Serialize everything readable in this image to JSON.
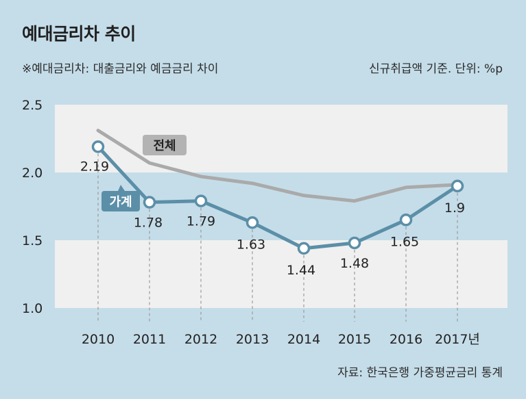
{
  "title": "예대금리차 추이",
  "note": "※예대금리차: 대출금리와 예금금리 차이",
  "basis": "신규취급액 기준. 단위: %p",
  "source": "자료: 한국은행 가중평균금리 통계",
  "chart_data": {
    "type": "line",
    "x": [
      "2010",
      "2011",
      "2012",
      "2013",
      "2014",
      "2015",
      "2016",
      "2017년"
    ],
    "ylim": [
      1.0,
      2.5
    ],
    "yticks": [
      "2.5",
      "2.0",
      "1.5",
      "1.0"
    ],
    "grid": "horizontal bands",
    "series": [
      {
        "name": "가계",
        "values": [
          2.19,
          1.78,
          1.79,
          1.63,
          1.44,
          1.48,
          1.65,
          1.9
        ],
        "labels": [
          "2.19",
          "1.78",
          "1.79",
          "1.63",
          "1.44",
          "1.48",
          "1.65",
          "1.9"
        ],
        "color": "#5b8fa8"
      },
      {
        "name": "전체",
        "values": [
          2.31,
          2.07,
          1.97,
          1.92,
          1.83,
          1.79,
          1.89,
          1.91
        ],
        "color": "#aaaaaa"
      }
    ]
  },
  "colors": {
    "background": "#c5dde9",
    "band": "#f0f0f0",
    "household": "#5b8fa8",
    "total": "#aaaaaa"
  }
}
